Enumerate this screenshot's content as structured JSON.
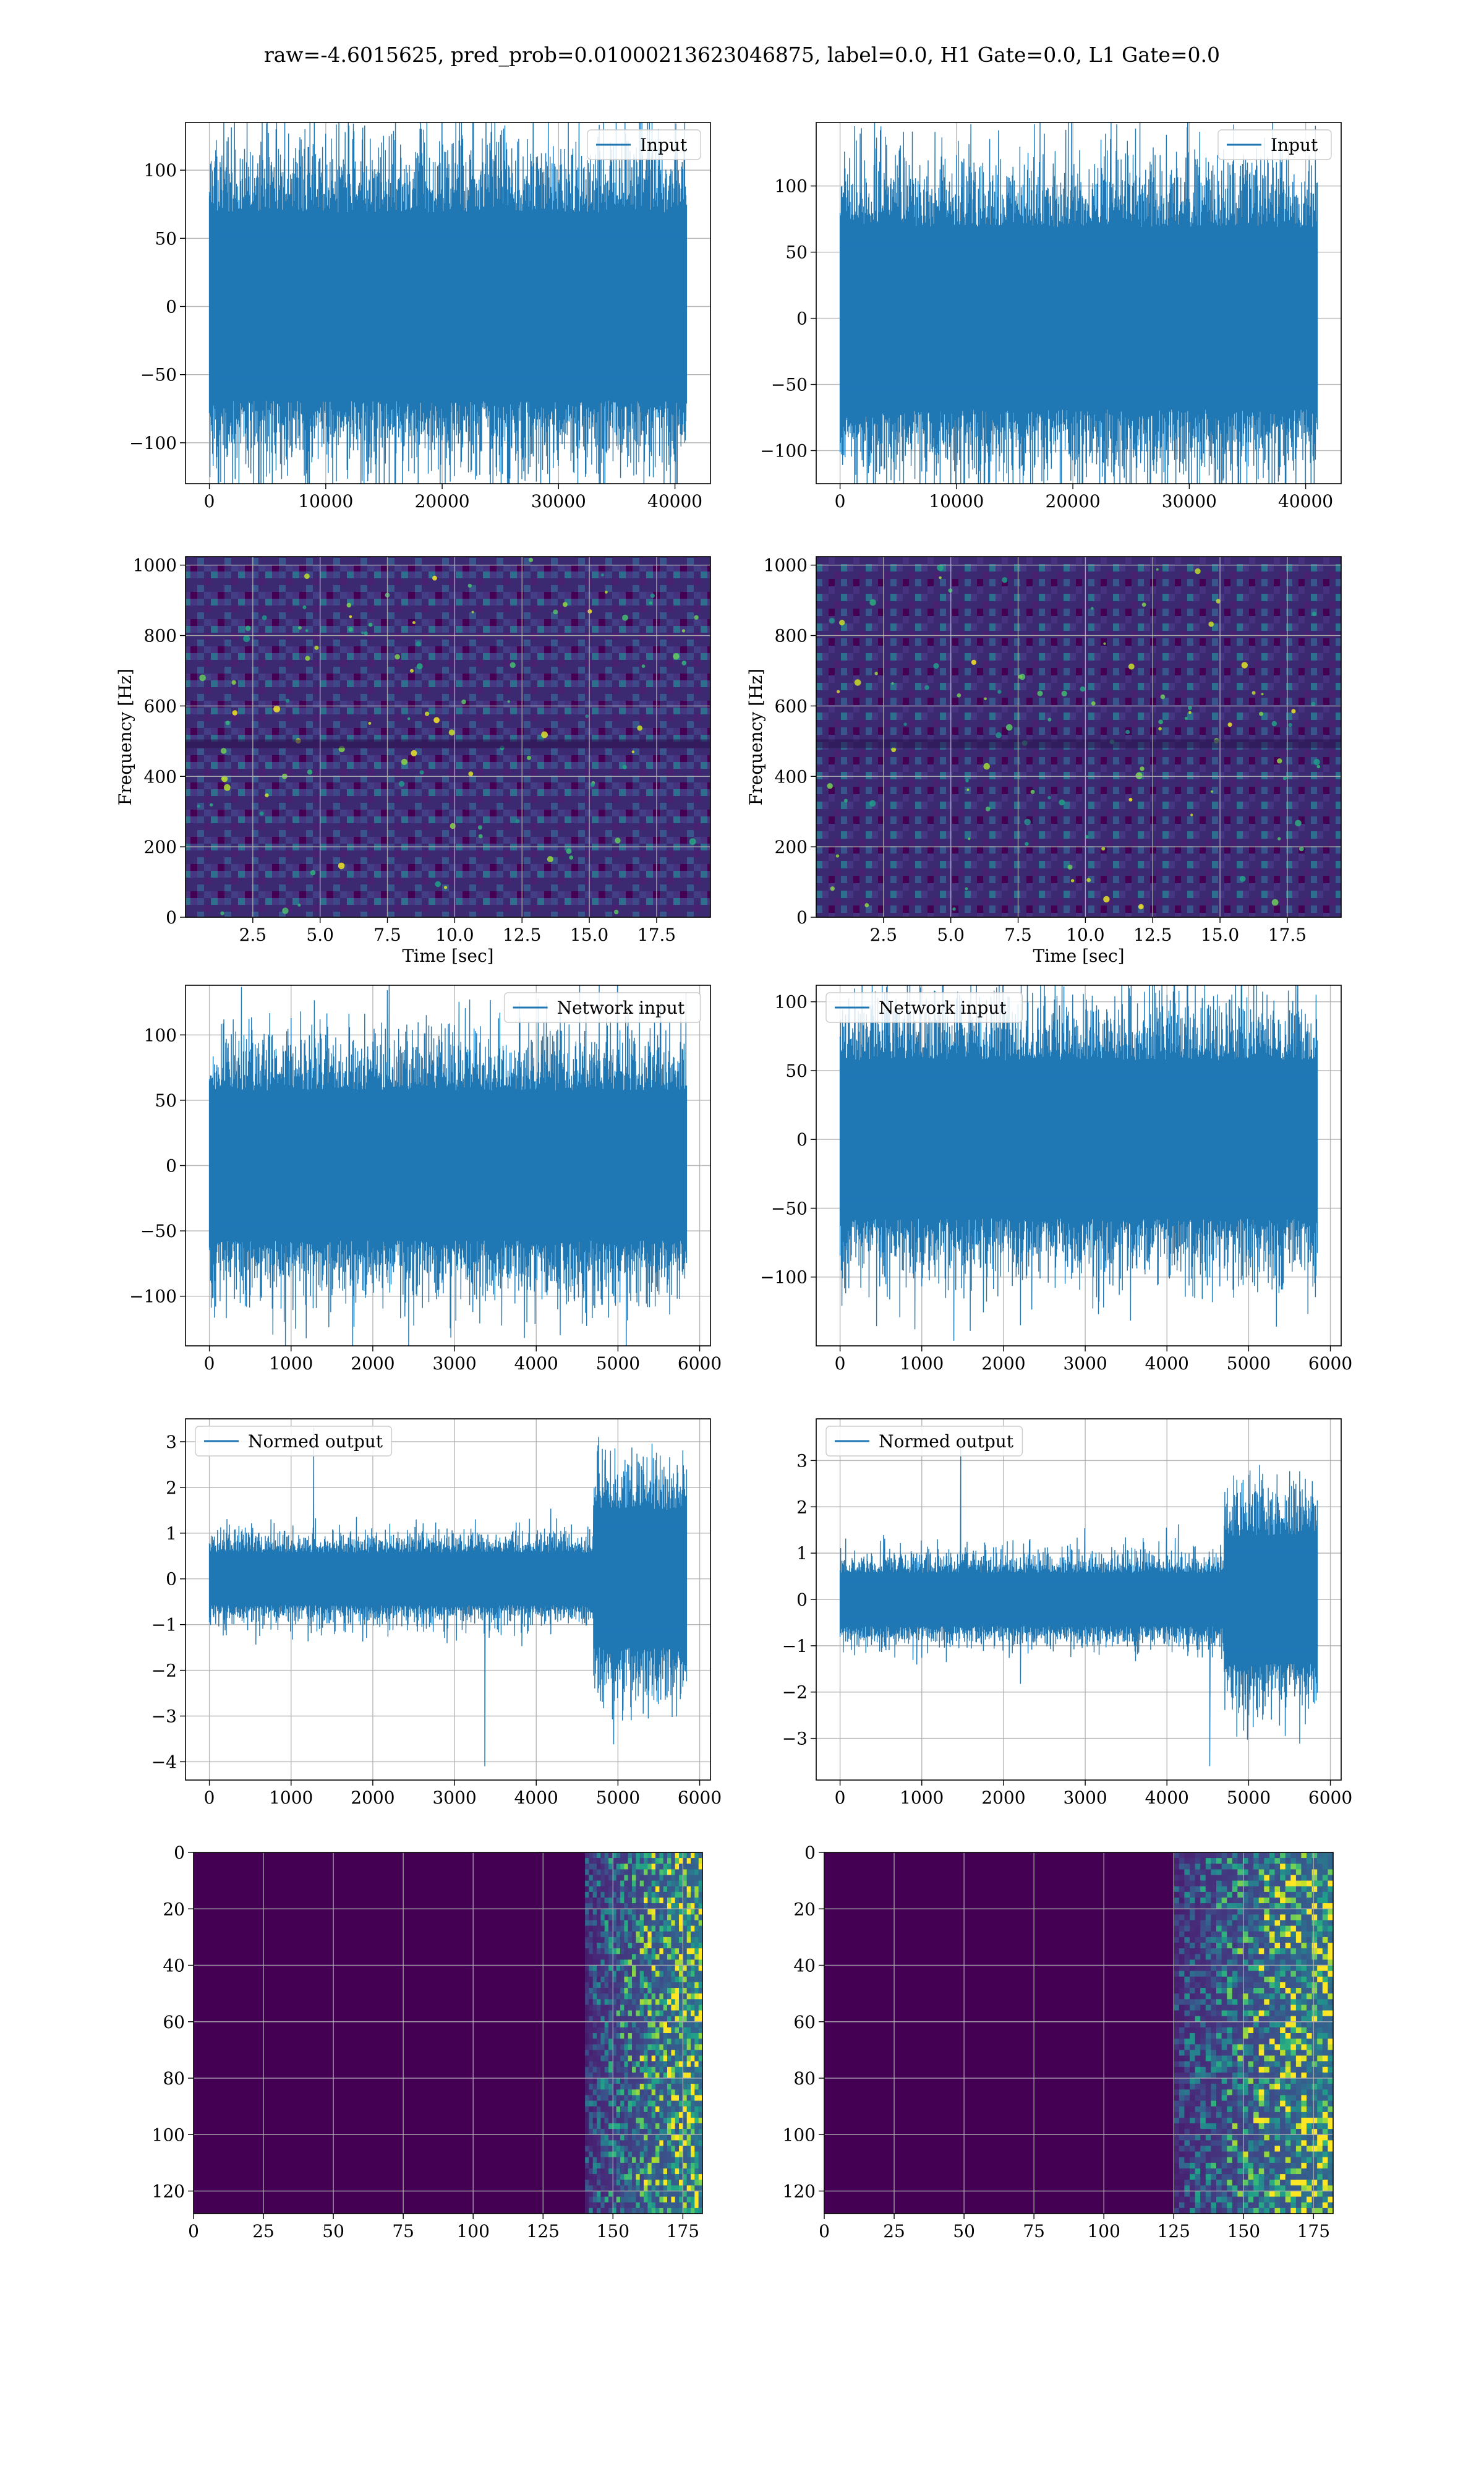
{
  "figure": {
    "title": "raw=-4.6015625, pred_prob=0.01000213623046875, label=0.0, H1 Gate=0.0, L1 Gate=0.0",
    "line_color": "#1f77b4",
    "grid_color": "#b0b0b0",
    "colormap": "viridis"
  },
  "chart_data": [
    {
      "id": "input-left",
      "type": "line",
      "row": 0,
      "col": 0,
      "series": [
        {
          "name": "Input",
          "points": 41000,
          "x": [
            0,
            41000
          ],
          "amplitude": 60,
          "peaks": [
            120,
            -125
          ]
        }
      ],
      "xlim": [
        -2050,
        43050
      ],
      "ylim": [
        -130,
        135
      ],
      "xticks": [
        0,
        10000,
        20000,
        30000,
        40000
      ],
      "yticks": [
        -100,
        -50,
        0,
        50,
        100
      ],
      "legend": "upper right",
      "grid": true,
      "xlabel": "",
      "ylabel": ""
    },
    {
      "id": "input-right",
      "type": "line",
      "row": 0,
      "col": 1,
      "series": [
        {
          "name": "Input",
          "points": 41000,
          "x": [
            0,
            41000
          ],
          "amplitude": 60,
          "peaks": [
            135,
            -118
          ]
        }
      ],
      "xlim": [
        -2050,
        43050
      ],
      "ylim": [
        -125,
        148
      ],
      "xticks": [
        0,
        10000,
        20000,
        30000,
        40000
      ],
      "yticks": [
        -100,
        -50,
        0,
        50,
        100
      ],
      "legend": "upper right",
      "grid": true,
      "xlabel": "",
      "ylabel": ""
    },
    {
      "id": "spectrogram-left",
      "type": "heatmap",
      "row": 1,
      "col": 0,
      "x": [
        0,
        19.5
      ],
      "y": [
        0,
        1024
      ],
      "value_range": [
        0,
        1
      ],
      "xlim": [
        0,
        19.5
      ],
      "ylim": [
        0,
        1024
      ],
      "xticks": [
        2.5,
        5.0,
        7.5,
        10.0,
        12.5,
        15.0,
        17.5
      ],
      "yticks": [
        0,
        200,
        400,
        600,
        800,
        1000
      ],
      "xlabel": "Time [sec]",
      "ylabel": "Frequency [Hz]",
      "grid": true
    },
    {
      "id": "spectrogram-right",
      "type": "heatmap",
      "row": 1,
      "col": 1,
      "x": [
        0,
        19.5
      ],
      "y": [
        0,
        1024
      ],
      "value_range": [
        0,
        1
      ],
      "xlim": [
        0,
        19.5
      ],
      "ylim": [
        0,
        1024
      ],
      "xticks": [
        2.5,
        5.0,
        7.5,
        10.0,
        12.5,
        15.0,
        17.5
      ],
      "yticks": [
        0,
        200,
        400,
        600,
        800,
        1000
      ],
      "xlabel": "Time [sec]",
      "ylabel": "Frequency [Hz]",
      "grid": true
    },
    {
      "id": "network-input-left",
      "type": "line",
      "row": 2,
      "col": 0,
      "series": [
        {
          "name": "Network input",
          "points": 5840,
          "x": [
            0,
            5840
          ],
          "amplitude": 50,
          "peaks": [
            125,
            -125
          ]
        }
      ],
      "xlim": [
        -292,
        6132
      ],
      "ylim": [
        -138,
        138
      ],
      "xticks": [
        0,
        1000,
        2000,
        3000,
        4000,
        5000,
        6000
      ],
      "yticks": [
        -100,
        -50,
        0,
        50,
        100
      ],
      "legend": "upper right",
      "grid": true,
      "xlabel": "",
      "ylabel": ""
    },
    {
      "id": "network-input-right",
      "type": "line",
      "row": 2,
      "col": 1,
      "series": [
        {
          "name": "Network input",
          "points": 5840,
          "x": [
            0,
            5840
          ],
          "amplitude": 50,
          "peaks": [
            105,
            -135
          ]
        }
      ],
      "xlim": [
        -292,
        6132
      ],
      "ylim": [
        -150,
        112
      ],
      "xticks": [
        0,
        1000,
        2000,
        3000,
        4000,
        5000,
        6000
      ],
      "yticks": [
        -100,
        -50,
        0,
        50,
        100
      ],
      "legend": "upper left",
      "grid": true,
      "xlabel": "",
      "ylabel": ""
    },
    {
      "id": "normed-output-left",
      "type": "line",
      "row": 3,
      "col": 0,
      "series": [
        {
          "name": "Normed output",
          "points": 5840,
          "x": [
            0,
            5840
          ],
          "amplitude": 0.5,
          "burst": [
            4700,
            5840
          ],
          "burst_amplitude": 1.3,
          "peaks": [
            3.3,
            -4.1
          ]
        }
      ],
      "xlim": [
        -292,
        6132
      ],
      "ylim": [
        -4.4,
        3.5
      ],
      "xticks": [
        0,
        1000,
        2000,
        3000,
        4000,
        5000,
        6000
      ],
      "yticks": [
        -4,
        -3,
        -2,
        -1,
        0,
        1,
        2,
        3
      ],
      "legend": "upper left",
      "grid": true,
      "xlabel": "",
      "ylabel": ""
    },
    {
      "id": "normed-output-right",
      "type": "line",
      "row": 3,
      "col": 1,
      "series": [
        {
          "name": "Normed output",
          "points": 5840,
          "x": [
            0,
            5840
          ],
          "amplitude": 0.5,
          "burst": [
            4700,
            5840
          ],
          "burst_amplitude": 1.2,
          "peaks": [
            3.5,
            -3.6
          ]
        }
      ],
      "xlim": [
        -292,
        6132
      ],
      "ylim": [
        -3.9,
        3.9
      ],
      "xticks": [
        0,
        1000,
        2000,
        3000,
        4000,
        5000,
        6000
      ],
      "yticks": [
        -3,
        -2,
        -1,
        0,
        1,
        2,
        3
      ],
      "legend": "upper left",
      "grid": true,
      "xlabel": "",
      "ylabel": ""
    },
    {
      "id": "output-map-left",
      "type": "heatmap",
      "row": 4,
      "col": 0,
      "x": [
        0,
        182
      ],
      "y": [
        0,
        128
      ],
      "active_from": 140,
      "value_range": [
        0,
        1
      ],
      "xlim": [
        0,
        182
      ],
      "ylim": [
        128,
        0
      ],
      "y_inverted": true,
      "xticks": [
        0,
        25,
        50,
        75,
        100,
        125,
        150,
        175
      ],
      "yticks": [
        0,
        20,
        40,
        60,
        80,
        100,
        120
      ],
      "xlabel": "",
      "ylabel": "",
      "grid": true
    },
    {
      "id": "output-map-right",
      "type": "heatmap",
      "row": 4,
      "col": 1,
      "x": [
        0,
        182
      ],
      "y": [
        0,
        128
      ],
      "active_from": 125,
      "value_range": [
        0,
        1
      ],
      "xlim": [
        0,
        182
      ],
      "ylim": [
        128,
        0
      ],
      "y_inverted": true,
      "xticks": [
        0,
        25,
        50,
        75,
        100,
        125,
        150,
        175
      ],
      "yticks": [
        0,
        20,
        40,
        60,
        80,
        100,
        120
      ],
      "xlabel": "",
      "ylabel": "",
      "grid": true
    }
  ]
}
